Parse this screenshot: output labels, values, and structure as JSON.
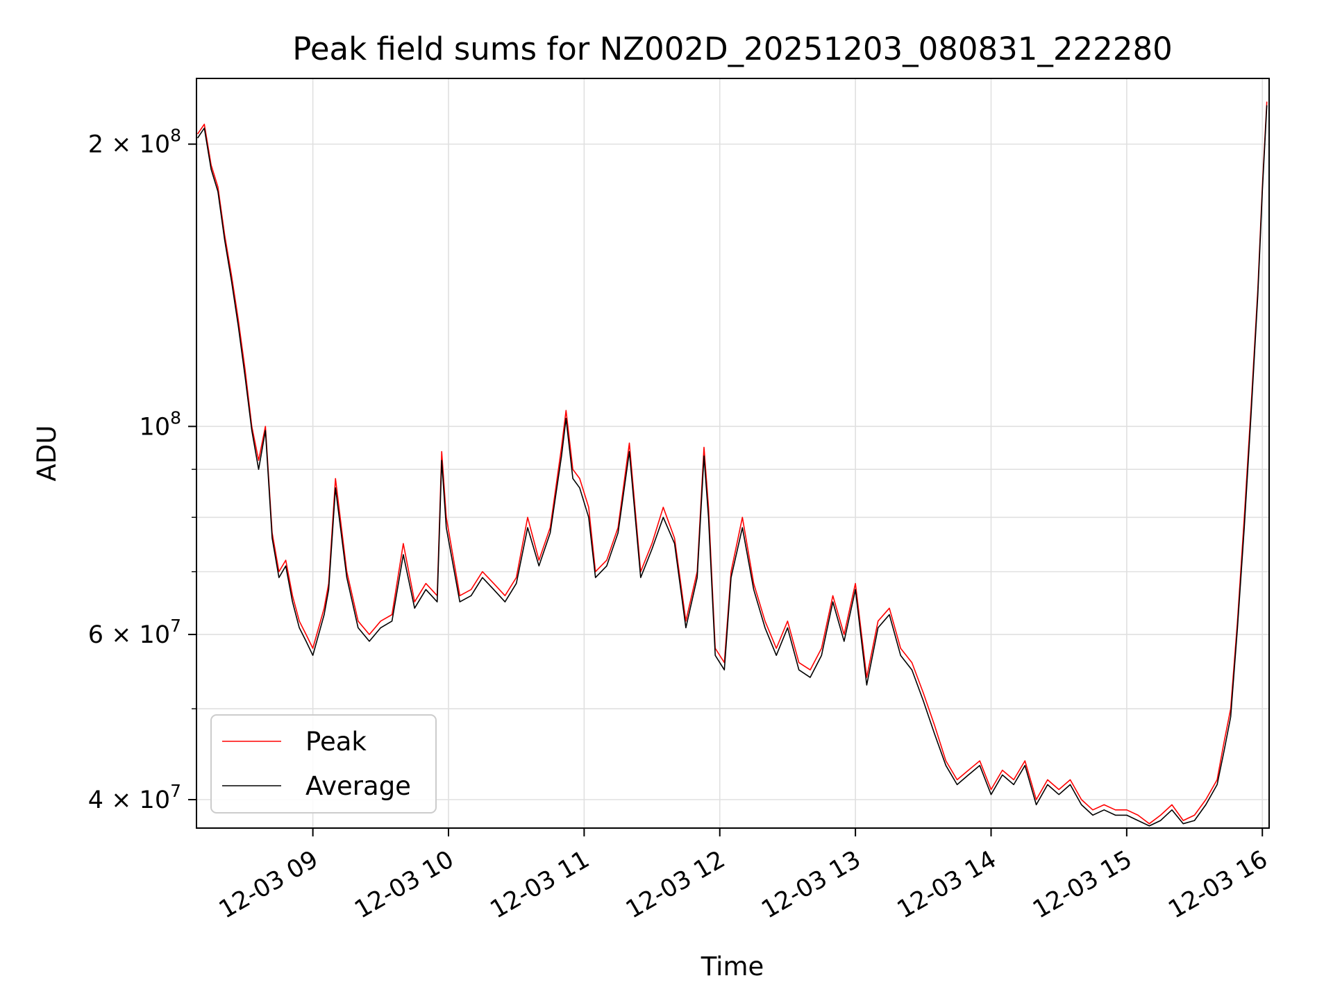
{
  "chart_data": {
    "type": "line",
    "title": "Peak field sums for NZ002D_20251203_080831_222280",
    "xlabel": "Time",
    "ylabel": "ADU",
    "yscale": "log",
    "xlim": [
      "2025-12-03T08:08:31",
      "2025-12-03T16:03:00"
    ],
    "ylim": [
      37300000,
      235000000
    ],
    "grid": true,
    "legend_position": "lower-left",
    "x_ticks": [
      {
        "value": "2025-12-03T09:00:00",
        "label": "12-03 09"
      },
      {
        "value": "2025-12-03T10:00:00",
        "label": "12-03 10"
      },
      {
        "value": "2025-12-03T11:00:00",
        "label": "12-03 11"
      },
      {
        "value": "2025-12-03T12:00:00",
        "label": "12-03 12"
      },
      {
        "value": "2025-12-03T13:00:00",
        "label": "12-03 13"
      },
      {
        "value": "2025-12-03T14:00:00",
        "label": "12-03 14"
      },
      {
        "value": "2025-12-03T15:00:00",
        "label": "12-03 15"
      },
      {
        "value": "2025-12-03T16:00:00",
        "label": "12-03 16"
      }
    ],
    "y_major_ticks": [
      {
        "value": 40000000,
        "base": "4",
        "exp": "7"
      },
      {
        "value": 60000000,
        "base": "6",
        "exp": "7"
      },
      {
        "value": 100000000,
        "base": "",
        "exp": "8"
      },
      {
        "value": 200000000,
        "base": "2",
        "exp": "8"
      }
    ],
    "y_minor_ticks": [
      50000000,
      70000000,
      80000000,
      90000000
    ],
    "series": [
      {
        "name": "Peak",
        "color": "#ff0000",
        "stroke_width": 1.6
      },
      {
        "name": "Average",
        "color": "#000000",
        "stroke_width": 1.6
      }
    ],
    "x": [
      "08:09",
      "08:12",
      "08:15",
      "08:18",
      "08:21",
      "08:24",
      "08:27",
      "08:30",
      "08:33",
      "08:36",
      "08:39",
      "08:42",
      "08:45",
      "08:48",
      "08:51",
      "08:54",
      "08:57",
      "09:00",
      "09:05",
      "09:07",
      "09:10",
      "09:15",
      "09:20",
      "09:25",
      "09:30",
      "09:35",
      "09:40",
      "09:45",
      "09:50",
      "09:55",
      "09:57",
      "09:59",
      "10:05",
      "10:10",
      "10:15",
      "10:20",
      "10:25",
      "10:30",
      "10:35",
      "10:40",
      "10:45",
      "10:50",
      "10:52",
      "10:55",
      "10:58",
      "11:02",
      "11:05",
      "11:10",
      "11:15",
      "11:20",
      "11:25",
      "11:30",
      "11:35",
      "11:40",
      "11:45",
      "11:50",
      "11:53",
      "11:55",
      "11:58",
      "12:02",
      "12:05",
      "12:10",
      "12:15",
      "12:20",
      "12:25",
      "12:30",
      "12:35",
      "12:40",
      "12:45",
      "12:50",
      "12:55",
      "13:00",
      "13:05",
      "13:10",
      "13:15",
      "13:20",
      "13:25",
      "13:30",
      "13:35",
      "13:40",
      "13:45",
      "13:50",
      "13:55",
      "14:00",
      "14:05",
      "14:10",
      "14:15",
      "14:20",
      "14:25",
      "14:30",
      "14:35",
      "14:40",
      "14:45",
      "14:50",
      "14:55",
      "15:00",
      "15:05",
      "15:10",
      "15:15",
      "15:20",
      "15:25",
      "15:30",
      "15:35",
      "15:40",
      "15:43",
      "15:46",
      "15:49",
      "15:52",
      "15:55",
      "15:58",
      "16:00",
      "16:02"
    ],
    "values_peak": [
      205000000,
      210000000,
      190000000,
      180000000,
      160000000,
      145000000,
      130000000,
      115000000,
      100000000,
      92000000,
      100000000,
      77000000,
      70000000,
      72000000,
      66000000,
      62000000,
      60000000,
      58000000,
      64000000,
      68000000,
      88000000,
      70000000,
      62000000,
      60000000,
      62000000,
      63000000,
      75000000,
      65000000,
      68000000,
      66000000,
      94000000,
      80000000,
      66000000,
      67000000,
      70000000,
      68000000,
      66000000,
      69000000,
      80000000,
      72000000,
      78000000,
      95000000,
      104000000,
      90000000,
      88000000,
      82000000,
      70000000,
      72000000,
      78000000,
      96000000,
      70000000,
      75000000,
      82000000,
      76000000,
      62000000,
      70000000,
      95000000,
      82000000,
      58000000,
      56000000,
      70000000,
      80000000,
      68000000,
      62000000,
      58000000,
      62000000,
      56000000,
      55000000,
      58000000,
      66000000,
      60000000,
      68000000,
      54000000,
      62000000,
      64000000,
      58000000,
      56000000,
      52000000,
      48000000,
      44000000,
      42000000,
      43000000,
      44000000,
      41000000,
      43000000,
      42000000,
      44000000,
      40000000,
      42000000,
      41000000,
      42000000,
      40000000,
      39000000,
      39500000,
      39000000,
      39000000,
      38500000,
      37700000,
      38500000,
      39500000,
      38000000,
      38500000,
      40000000,
      42000000,
      46000000,
      50000000,
      62000000,
      80000000,
      105000000,
      140000000,
      180000000,
      222000000
    ],
    "values_average": [
      203000000,
      208000000,
      188000000,
      178000000,
      158000000,
      143000000,
      128000000,
      113000000,
      99000000,
      90000000,
      99000000,
      76000000,
      69000000,
      71000000,
      65000000,
      61000000,
      59000000,
      57000000,
      63000000,
      67000000,
      86000000,
      69000000,
      61000000,
      59000000,
      61000000,
      62000000,
      73000000,
      64000000,
      67000000,
      65000000,
      92000000,
      78000000,
      65000000,
      66000000,
      69000000,
      67000000,
      65000000,
      68000000,
      78000000,
      71000000,
      77000000,
      93000000,
      102000000,
      88000000,
      86000000,
      80000000,
      69000000,
      71000000,
      77000000,
      94000000,
      69000000,
      74000000,
      80000000,
      75000000,
      61000000,
      69000000,
      93000000,
      80000000,
      57000000,
      55000000,
      69000000,
      78000000,
      67000000,
      61000000,
      57000000,
      61000000,
      55000000,
      54000000,
      57000000,
      65000000,
      59000000,
      67000000,
      53000000,
      61000000,
      63000000,
      57000000,
      55000000,
      51000000,
      47000000,
      43500000,
      41500000,
      42500000,
      43500000,
      40500000,
      42500000,
      41500000,
      43500000,
      39500000,
      41500000,
      40500000,
      41500000,
      39500000,
      38500000,
      39000000,
      38500000,
      38500000,
      38000000,
      37500000,
      38000000,
      39000000,
      37700000,
      38000000,
      39500000,
      41500000,
      45000000,
      49000000,
      61000000,
      78000000,
      103000000,
      138000000,
      178000000,
      220000000
    ]
  }
}
